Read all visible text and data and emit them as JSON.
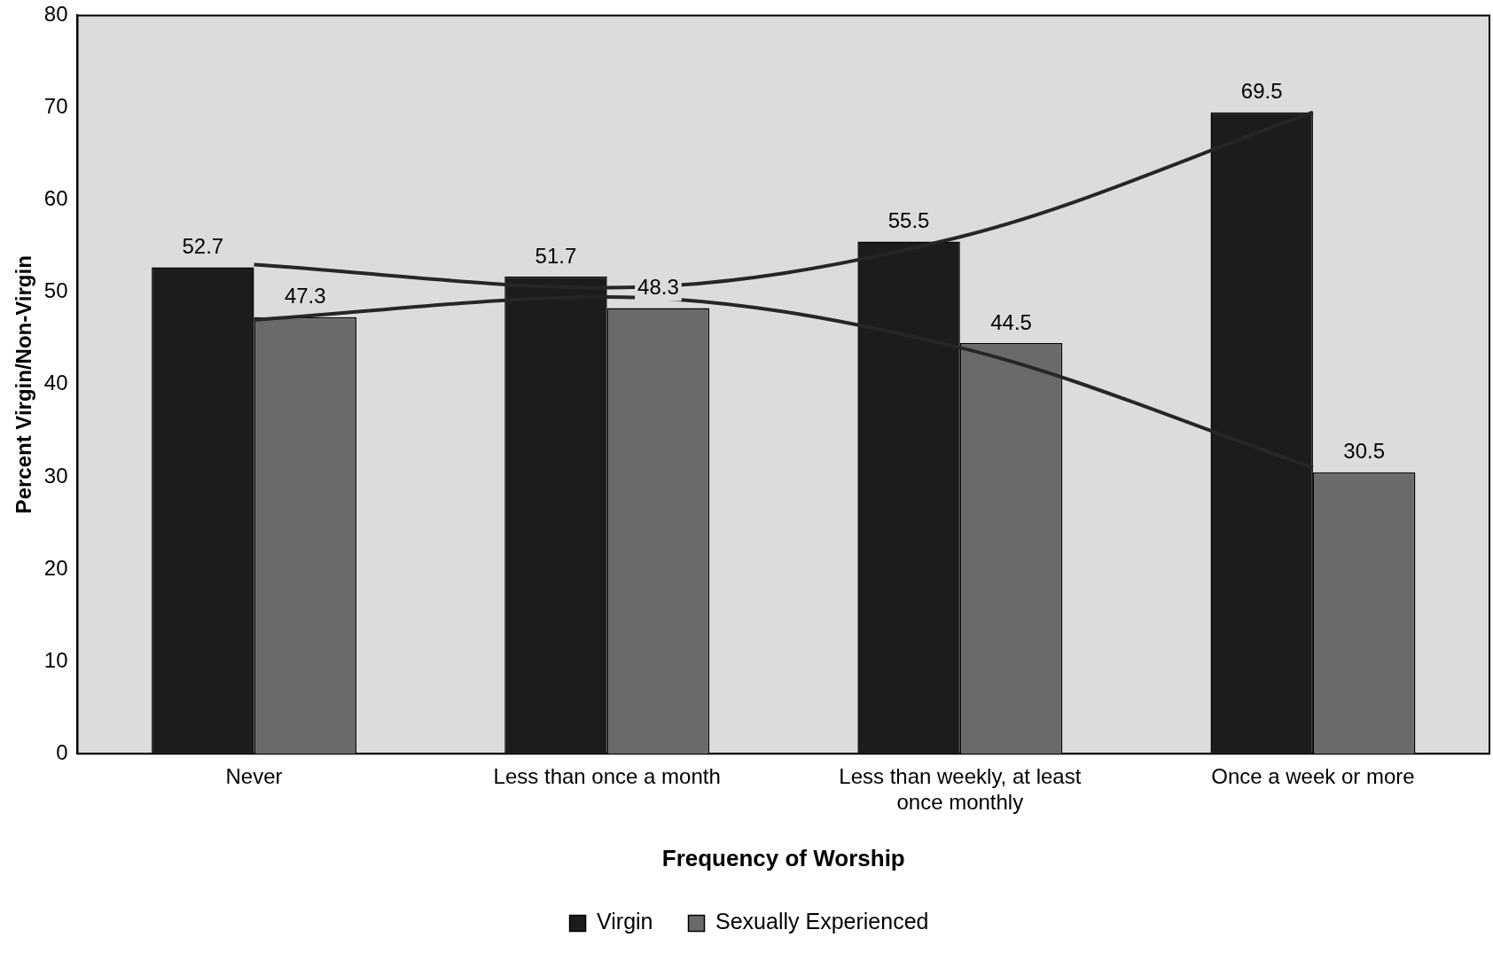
{
  "chart_data": {
    "type": "bar",
    "xlabel": "Frequency of Worship",
    "ylabel": "Percent Virgin/Non-Virgin",
    "categories": [
      "Never",
      "Less than once a month",
      "Less than weekly, at least once monthly",
      "Once a week or more"
    ],
    "series": [
      {
        "name": "Virgin",
        "color": "#1c1c1c",
        "values": [
          52.7,
          51.7,
          55.5,
          69.5
        ],
        "value_labels": [
          "52.7",
          "51.7",
          "55.5",
          "69.5"
        ]
      },
      {
        "name": "Sexually Experienced",
        "color": "#6a6a6a",
        "values": [
          47.3,
          48.3,
          44.5,
          30.5
        ],
        "value_labels": [
          "47.3",
          "48.3",
          "44.5",
          "30.5"
        ]
      },
      {
        "type": "line",
        "color": "#262626",
        "values": [
          53,
          50.5,
          56,
          69.5
        ]
      },
      {
        "type": "line",
        "color": "#262626",
        "values": [
          47,
          49.5,
          44,
          31
        ]
      }
    ],
    "ylim": [
      0,
      80
    ],
    "yticks": [
      0,
      10,
      20,
      30,
      40,
      50,
      60,
      70,
      80
    ],
    "grid": false,
    "legend": "bottom",
    "marker": "none",
    "line_style": "solid"
  }
}
